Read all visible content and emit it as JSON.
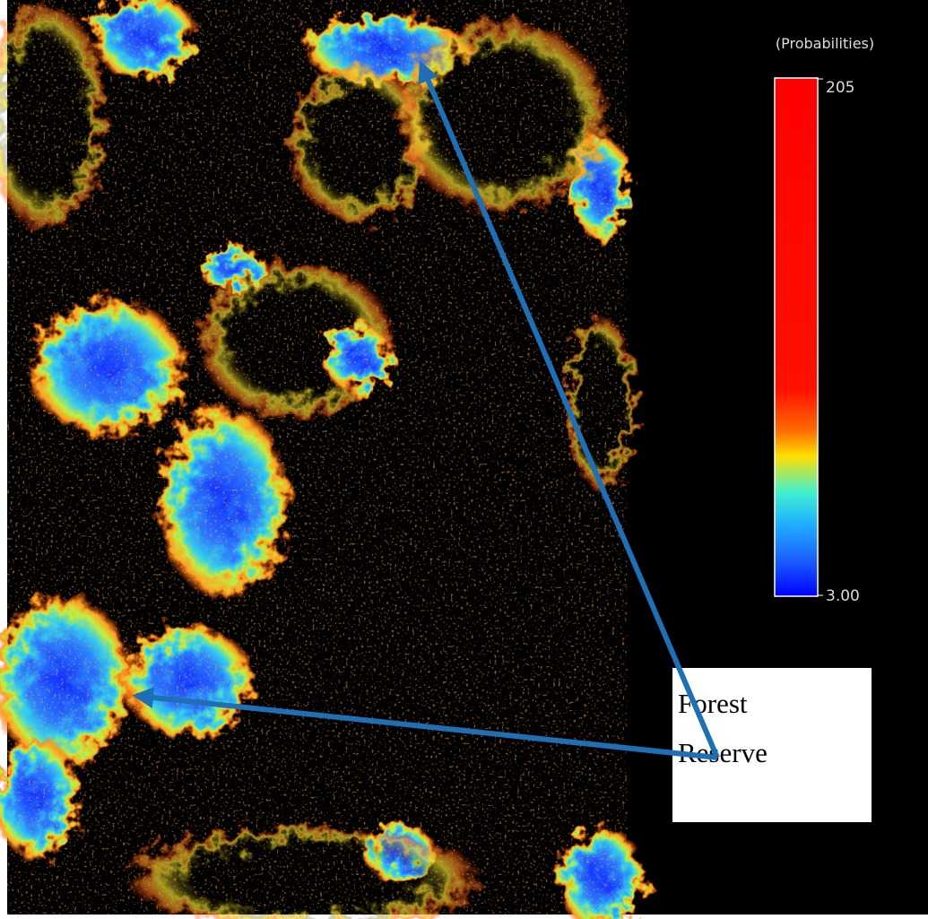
{
  "legend": {
    "title": "(Probabilities)",
    "max": 205,
    "min": {
      "value": 3,
      "label": "3.00"
    }
  },
  "annotation": {
    "lines": [
      "Forest",
      "Reserve"
    ]
  }
}
